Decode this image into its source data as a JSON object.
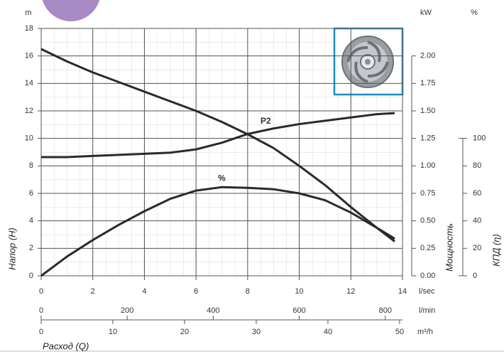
{
  "chart_data": {
    "type": "line",
    "x": [
      0,
      1,
      2,
      3,
      4,
      5,
      6,
      7,
      8,
      9,
      10,
      11,
      12,
      13,
      13.7
    ],
    "xlim": [
      0,
      14
    ],
    "xticks": [
      0,
      2,
      4,
      6,
      8,
      10,
      12,
      14
    ],
    "xunit": "l/sec",
    "x2lim": [
      0,
      840
    ],
    "x2ticks": [
      0,
      200,
      400,
      600,
      800
    ],
    "x2unit": "l/min",
    "x3lim": [
      0,
      50.4
    ],
    "x3ticks": [
      0,
      10,
      20,
      30,
      40,
      50
    ],
    "x3unit": "m³/h",
    "xlabel": "Расход (Q)",
    "ylim": [
      0,
      18
    ],
    "yticks": [
      0,
      2,
      4,
      6,
      8,
      10,
      12,
      14,
      16,
      18
    ],
    "yunit": "m",
    "ylabel": "Напор (H)",
    "y2lim": [
      0,
      2.25
    ],
    "y2ticks": [
      {
        "value": 0,
        "label": "0.00"
      },
      0.25,
      {
        "value": 0.5,
        "label": "0.50"
      },
      0.75,
      {
        "value": 1,
        "label": "1.00"
      },
      1.25,
      {
        "value": 1.5,
        "label": "1.50"
      },
      1.75,
      {
        "value": 2,
        "label": "2.00"
      }
    ],
    "y2unit": "kW",
    "y2label": "Мощность",
    "y3lim": [
      0,
      180
    ],
    "y3ticks": [
      0,
      20,
      40,
      60,
      80,
      100
    ],
    "y3unit": "%",
    "y3label": "КПД (η)",
    "grid": true,
    "series": [
      {
        "color": "#2a2a2a",
        "values": [
          16.5,
          15.6,
          14.8,
          14.1,
          13.4,
          12.7,
          12.0,
          11.2,
          10.3,
          9.3,
          8.0,
          6.6,
          5.0,
          3.5,
          2.5
        ]
      },
      {
        "name": "P2",
        "axis": "y2",
        "color": "#2a2a2a",
        "values": [
          1.08,
          1.08,
          1.09,
          1.1,
          1.11,
          1.12,
          1.15,
          1.21,
          1.29,
          1.34,
          1.38,
          1.41,
          1.44,
          1.47,
          1.48
        ]
      },
      {
        "name": "%",
        "axis": "y3",
        "color": "#2a2a2a",
        "values": [
          0,
          14,
          26,
          37,
          47,
          56,
          62,
          64.5,
          64,
          63,
          60,
          55,
          46,
          35,
          27
        ]
      }
    ]
  }
}
